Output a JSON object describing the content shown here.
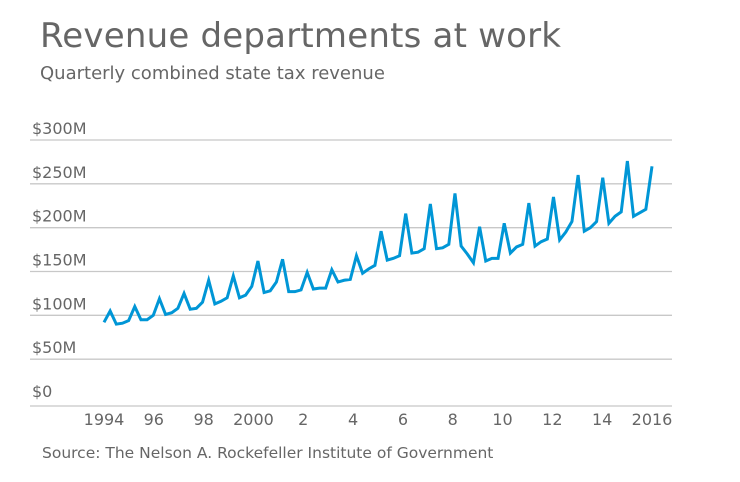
{
  "title": "Revenue departments at work",
  "subtitle": "Quarterly combined state tax revenue",
  "source": "Source: The Nelson A. Rockefeller Institute of Government",
  "chart_data": {
    "type": "line",
    "title": "Revenue departments at work",
    "subtitle": "Quarterly combined state tax revenue",
    "xlabel": "",
    "ylabel": "",
    "unit": "$M",
    "ylim": [
      0,
      300
    ],
    "xlim": [
      1994,
      2016
    ],
    "grid": true,
    "line_color": "#0096d6",
    "y_ticks": [
      {
        "v": 0,
        "label": "$0"
      },
      {
        "v": 50,
        "label": "$50M"
      },
      {
        "v": 100,
        "label": "$100M"
      },
      {
        "v": 150,
        "label": "$150M"
      },
      {
        "v": 200,
        "label": "$200M"
      },
      {
        "v": 250,
        "label": "$250M"
      },
      {
        "v": 300,
        "label": "$300M"
      }
    ],
    "x_ticks": [
      {
        "v": 1994,
        "label": "1994"
      },
      {
        "v": 1996,
        "label": "96"
      },
      {
        "v": 1998,
        "label": "98"
      },
      {
        "v": 2000,
        "label": "2000"
      },
      {
        "v": 2002,
        "label": "2"
      },
      {
        "v": 2004,
        "label": "4"
      },
      {
        "v": 2006,
        "label": "6"
      },
      {
        "v": 2008,
        "label": "8"
      },
      {
        "v": 2010,
        "label": "10"
      },
      {
        "v": 2012,
        "label": "12"
      },
      {
        "v": 2014,
        "label": "14"
      },
      {
        "v": 2016,
        "label": "2016"
      }
    ],
    "start_year": 1994,
    "values": [
      92,
      105,
      90,
      91,
      94,
      110,
      95,
      95,
      100,
      119,
      101,
      103,
      108,
      125,
      107,
      108,
      115,
      140,
      113,
      116,
      120,
      145,
      120,
      123,
      133,
      162,
      126,
      128,
      138,
      164,
      127,
      127,
      129,
      149,
      130,
      131,
      131,
      152,
      138,
      140,
      141,
      168,
      148,
      153,
      157,
      196,
      163,
      165,
      168,
      216,
      171,
      172,
      176,
      227,
      176,
      177,
      181,
      239,
      179,
      170,
      160,
      201,
      162,
      165,
      165,
      205,
      171,
      178,
      181,
      228,
      179,
      184,
      187,
      235,
      186,
      195,
      207,
      260,
      196,
      200,
      207,
      257,
      205,
      213,
      218,
      276,
      213,
      217,
      221,
      270
    ]
  }
}
